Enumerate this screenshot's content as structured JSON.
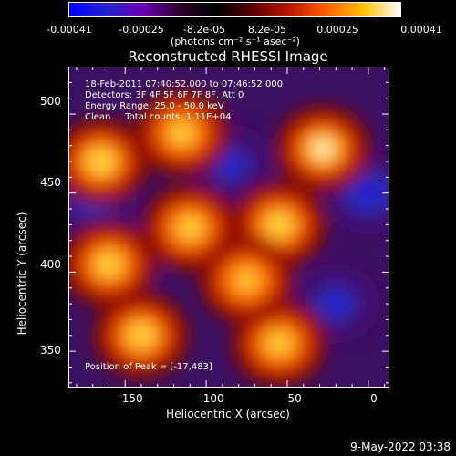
{
  "colorbar": {
    "colors": [
      "#0000ff",
      "#2222d0",
      "#6a00b0",
      "#2a0030",
      "#000000",
      "#5a0000",
      "#c01800",
      "#ff6000",
      "#ffc000",
      "#ffffff"
    ],
    "ticks": [
      "-0.00041",
      "-0.00025",
      "-8.2e-05",
      "8.2e-05",
      "0.00025",
      "0.00041"
    ],
    "unit": "(photons cm⁻² s⁻¹ asec⁻²)"
  },
  "chart_data": {
    "type": "heatmap",
    "title": "Reconstructed RHESSI Image",
    "xlabel": "Heliocentric X (arcsec)",
    "ylabel": "Heliocentric Y (arcsec)",
    "xlim": [
      -185,
      13
    ],
    "ylim": [
      327,
      530
    ],
    "xticks": [
      -150,
      -100,
      -50,
      0
    ],
    "yticks": [
      350,
      400,
      450,
      500
    ],
    "color_range": [
      -0.00041,
      0.00041
    ],
    "peak_position": [
      -17,
      483
    ],
    "bright_regions": [
      {
        "x": -28,
        "y": 478,
        "value": 0.00041
      },
      {
        "x": -55,
        "y": 430,
        "value": 0.00035
      },
      {
        "x": -110,
        "y": 428,
        "value": 0.0003
      },
      {
        "x": -165,
        "y": 470,
        "value": 0.00038
      },
      {
        "x": -160,
        "y": 405,
        "value": 0.00033
      },
      {
        "x": -140,
        "y": 360,
        "value": 0.00035
      },
      {
        "x": -55,
        "y": 355,
        "value": 0.00028
      },
      {
        "x": -75,
        "y": 395,
        "value": 0.00022
      },
      {
        "x": -115,
        "y": 488,
        "value": 0.00028
      }
    ],
    "dark_regions": [
      {
        "x": -150,
        "y": 410,
        "value": -0.00035
      },
      {
        "x": -170,
        "y": 450,
        "value": -0.0003
      },
      {
        "x": 0,
        "y": 450,
        "value": -0.00028
      },
      {
        "x": -20,
        "y": 380,
        "value": -0.00022
      },
      {
        "x": -85,
        "y": 468,
        "value": -0.0002
      }
    ]
  },
  "annotations": {
    "time_range": "18-Feb-2011 07:40:52.000 to 07:46:52.000",
    "detectors": "Detectors: 3F 4F 5F 6F 7F 8F, Att 0",
    "energy": "Energy Range: 25.0 - 50.0 keV",
    "clean": "Clean     Total counts: 1.11E+04",
    "position": "Position of Peak = [-17,483]"
  },
  "footer": {
    "timestamp": "9-May-2022 03:38"
  }
}
